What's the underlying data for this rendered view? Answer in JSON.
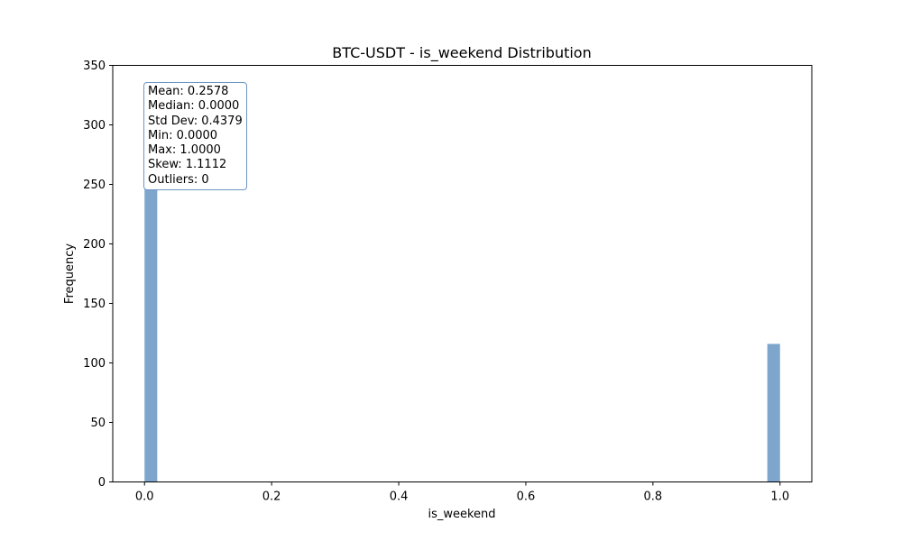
{
  "chart_data": {
    "type": "bar",
    "title": "BTC-USDT - is_weekend Distribution",
    "xlabel": "is_weekend",
    "ylabel": "Frequency",
    "xlim": [
      -0.05,
      1.05
    ],
    "ylim": [
      0,
      350
    ],
    "xticks": [
      "0.0",
      "0.2",
      "0.4",
      "0.6",
      "0.8",
      "1.0"
    ],
    "yticks": [
      "0",
      "50",
      "100",
      "150",
      "200",
      "250",
      "300",
      "350"
    ],
    "bins": [
      {
        "x0": 0.0,
        "x1": 0.02,
        "value": 334
      },
      {
        "x0": 0.98,
        "x1": 1.0,
        "value": 116
      }
    ],
    "bar_color": "#7ea6cd",
    "grid": false,
    "stats_lines": [
      "Mean: 0.2578",
      "Median: 0.0000",
      "Std Dev: 0.4379",
      "Min: 0.0000",
      "Max: 1.0000",
      "Skew: 1.1112",
      "Outliers: 0"
    ]
  }
}
